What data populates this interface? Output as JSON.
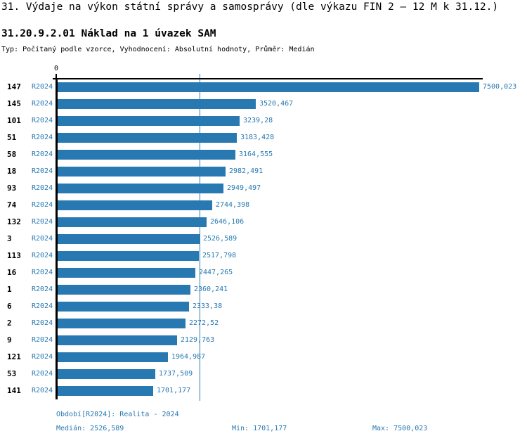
{
  "header": {
    "title": "31. Výdaje na výkon státní správy a samosprávy (dle výkazu FIN 2 – 12 M k 31.12.)",
    "subtitle": "31.20.9.2.01 Náklad na 1 úvazek SAM",
    "meta": "Typ: Počítaný podle vzorce, Vyhodnocení: Absolutní hodnoty, Průměr: Medián"
  },
  "chart_data": {
    "type": "bar",
    "orientation": "horizontal",
    "series_label": "R2024",
    "categories": [
      "147",
      "145",
      "101",
      "51",
      "58",
      "18",
      "93",
      "74",
      "132",
      "3",
      "113",
      "16",
      "1",
      "6",
      "2",
      "9",
      "121",
      "53",
      "141"
    ],
    "values": [
      7500.023,
      3520.467,
      3239.28,
      3183.428,
      3164.555,
      2982.491,
      2949.497,
      2744.398,
      2646.106,
      2526.589,
      2517.798,
      2447.265,
      2360.241,
      2333.38,
      2272.52,
      2129.763,
      1964.987,
      1737.509,
      1701.177
    ],
    "value_labels": [
      "7500,023",
      "3520,467",
      "3239,28",
      "3183,428",
      "3164,555",
      "2982,491",
      "2949,497",
      "2744,398",
      "2646,106",
      "2526,589",
      "2517,798",
      "2447,265",
      "2360,241",
      "2333,38",
      "2272,52",
      "2129,763",
      "1964,987",
      "1737,509",
      "1701,177"
    ],
    "xlim": [
      0,
      7500.023
    ],
    "zero_tick_label": "0",
    "median_line_value": 2526.589,
    "bar_color": "#2878b2",
    "axis_color": "#000000",
    "grid": "median-line-only",
    "legend_position": "none",
    "title": "31.20.9.2.01 Náklad na 1 úvazek SAM",
    "xlabel": "",
    "ylabel": ""
  },
  "footer": {
    "period": "Období[R2024]: Realita - 2024",
    "median": "Medián: 2526,589",
    "min": "Min: 1701,177",
    "max": "Max: 7500,023"
  }
}
